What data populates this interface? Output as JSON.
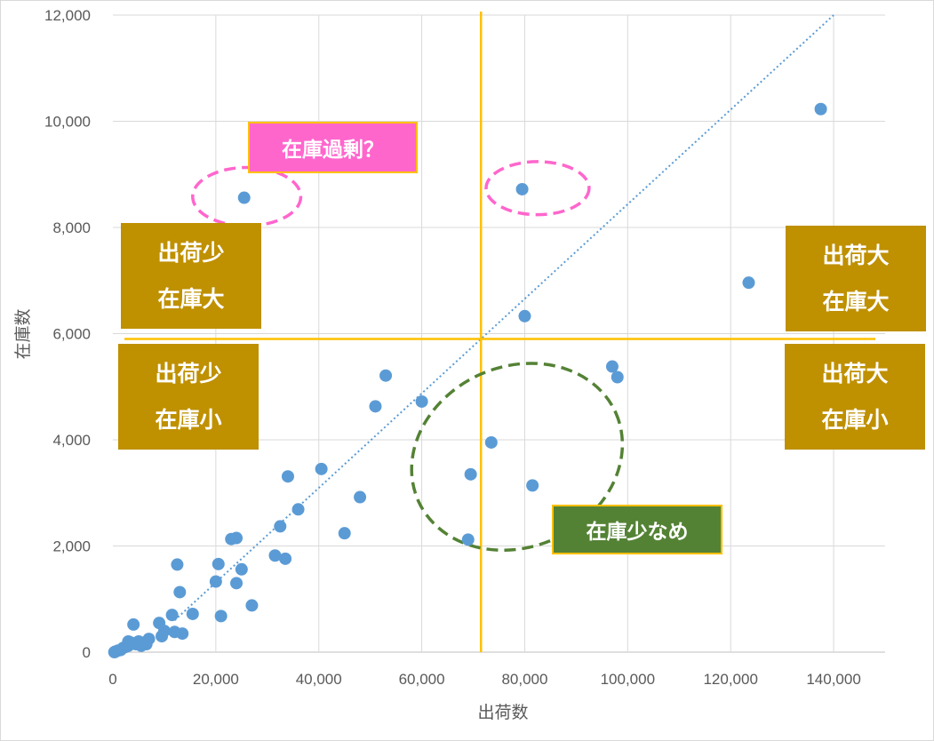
{
  "chart_data": {
    "type": "scatter",
    "title": "",
    "xlabel": "出荷数",
    "ylabel": "在庫数",
    "xlim": [
      0,
      150000
    ],
    "ylim": [
      0,
      12000
    ],
    "x_ticks": [
      "0",
      "20,000",
      "40,000",
      "60,000",
      "80,000",
      "100,000",
      "120,000",
      "140,000"
    ],
    "x_tick_values": [
      0,
      20000,
      40000,
      60000,
      80000,
      100000,
      120000,
      140000
    ],
    "y_ticks": [
      "0",
      "2,000",
      "4,000",
      "6,000",
      "8,000",
      "10,000",
      "12,000"
    ],
    "y_tick_values": [
      0,
      2000,
      4000,
      6000,
      8000,
      10000,
      12000
    ],
    "grid": true,
    "point_color": "#5b9bd5",
    "points": [
      [
        300,
        0
      ],
      [
        500,
        10
      ],
      [
        1000,
        30
      ],
      [
        1500,
        40
      ],
      [
        2000,
        80
      ],
      [
        2500,
        100
      ],
      [
        3000,
        120
      ],
      [
        3000,
        200
      ],
      [
        3500,
        180
      ],
      [
        4000,
        520
      ],
      [
        4500,
        150
      ],
      [
        5000,
        200
      ],
      [
        5500,
        120
      ],
      [
        6000,
        180
      ],
      [
        6500,
        150
      ],
      [
        7000,
        250
      ],
      [
        9000,
        550
      ],
      [
        9500,
        300
      ],
      [
        10000,
        400
      ],
      [
        11500,
        700
      ],
      [
        12000,
        380
      ],
      [
        12500,
        1650
      ],
      [
        13000,
        1130
      ],
      [
        13500,
        350
      ],
      [
        15500,
        720
      ],
      [
        20000,
        1330
      ],
      [
        20500,
        1660
      ],
      [
        21000,
        680
      ],
      [
        23000,
        2130
      ],
      [
        24000,
        2150
      ],
      [
        24000,
        1300
      ],
      [
        25000,
        1560
      ],
      [
        27000,
        880
      ],
      [
        31500,
        1820
      ],
      [
        32500,
        2370
      ],
      [
        33500,
        1760
      ],
      [
        34000,
        3310
      ],
      [
        36000,
        2690
      ],
      [
        40500,
        3450
      ],
      [
        45000,
        2240
      ],
      [
        48000,
        2920
      ],
      [
        51000,
        4630
      ],
      [
        53000,
        5210
      ],
      [
        60000,
        4720
      ],
      [
        69000,
        2120
      ],
      [
        69500,
        3350
      ],
      [
        73500,
        3950
      ],
      [
        81500,
        3140
      ],
      [
        80000,
        6330
      ],
      [
        79500,
        8720
      ],
      [
        97000,
        5380
      ],
      [
        98000,
        5180
      ],
      [
        123500,
        6960
      ],
      [
        137500,
        10230
      ],
      [
        25500,
        8560
      ]
    ],
    "trendline": {
      "from": [
        12000,
        600
      ],
      "to": [
        140000,
        12000
      ],
      "color": "#5b9bd5",
      "style": "dotted"
    },
    "reference_lines": {
      "x": 71500,
      "y": 5900,
      "color": "#ffc000"
    },
    "ellipses": [
      {
        "cx": 26000,
        "cy": 8580,
        "rx": 10500,
        "ry": 550,
        "color": "#ff66cc"
      },
      {
        "cx": 82500,
        "cy": 8740,
        "rx": 10000,
        "ry": 500,
        "color": "#ff66cc"
      },
      {
        "cx": 78500,
        "cy": 3680,
        "rx": 21000,
        "ry": 1700,
        "rotate": -24,
        "color": "#548235"
      }
    ]
  },
  "annotations": {
    "overstock": "在庫過剰？",
    "low_stock": "在庫少なめ",
    "q_top_left": {
      "line1": "出荷少",
      "line2": "在庫大"
    },
    "q_bottom_left": {
      "line1": "出荷少",
      "line2": "在庫小"
    },
    "q_top_right": {
      "line1": "出荷大",
      "line2": "在庫大"
    },
    "q_bottom_right": {
      "line1": "出荷大",
      "line2": "在庫小"
    }
  }
}
